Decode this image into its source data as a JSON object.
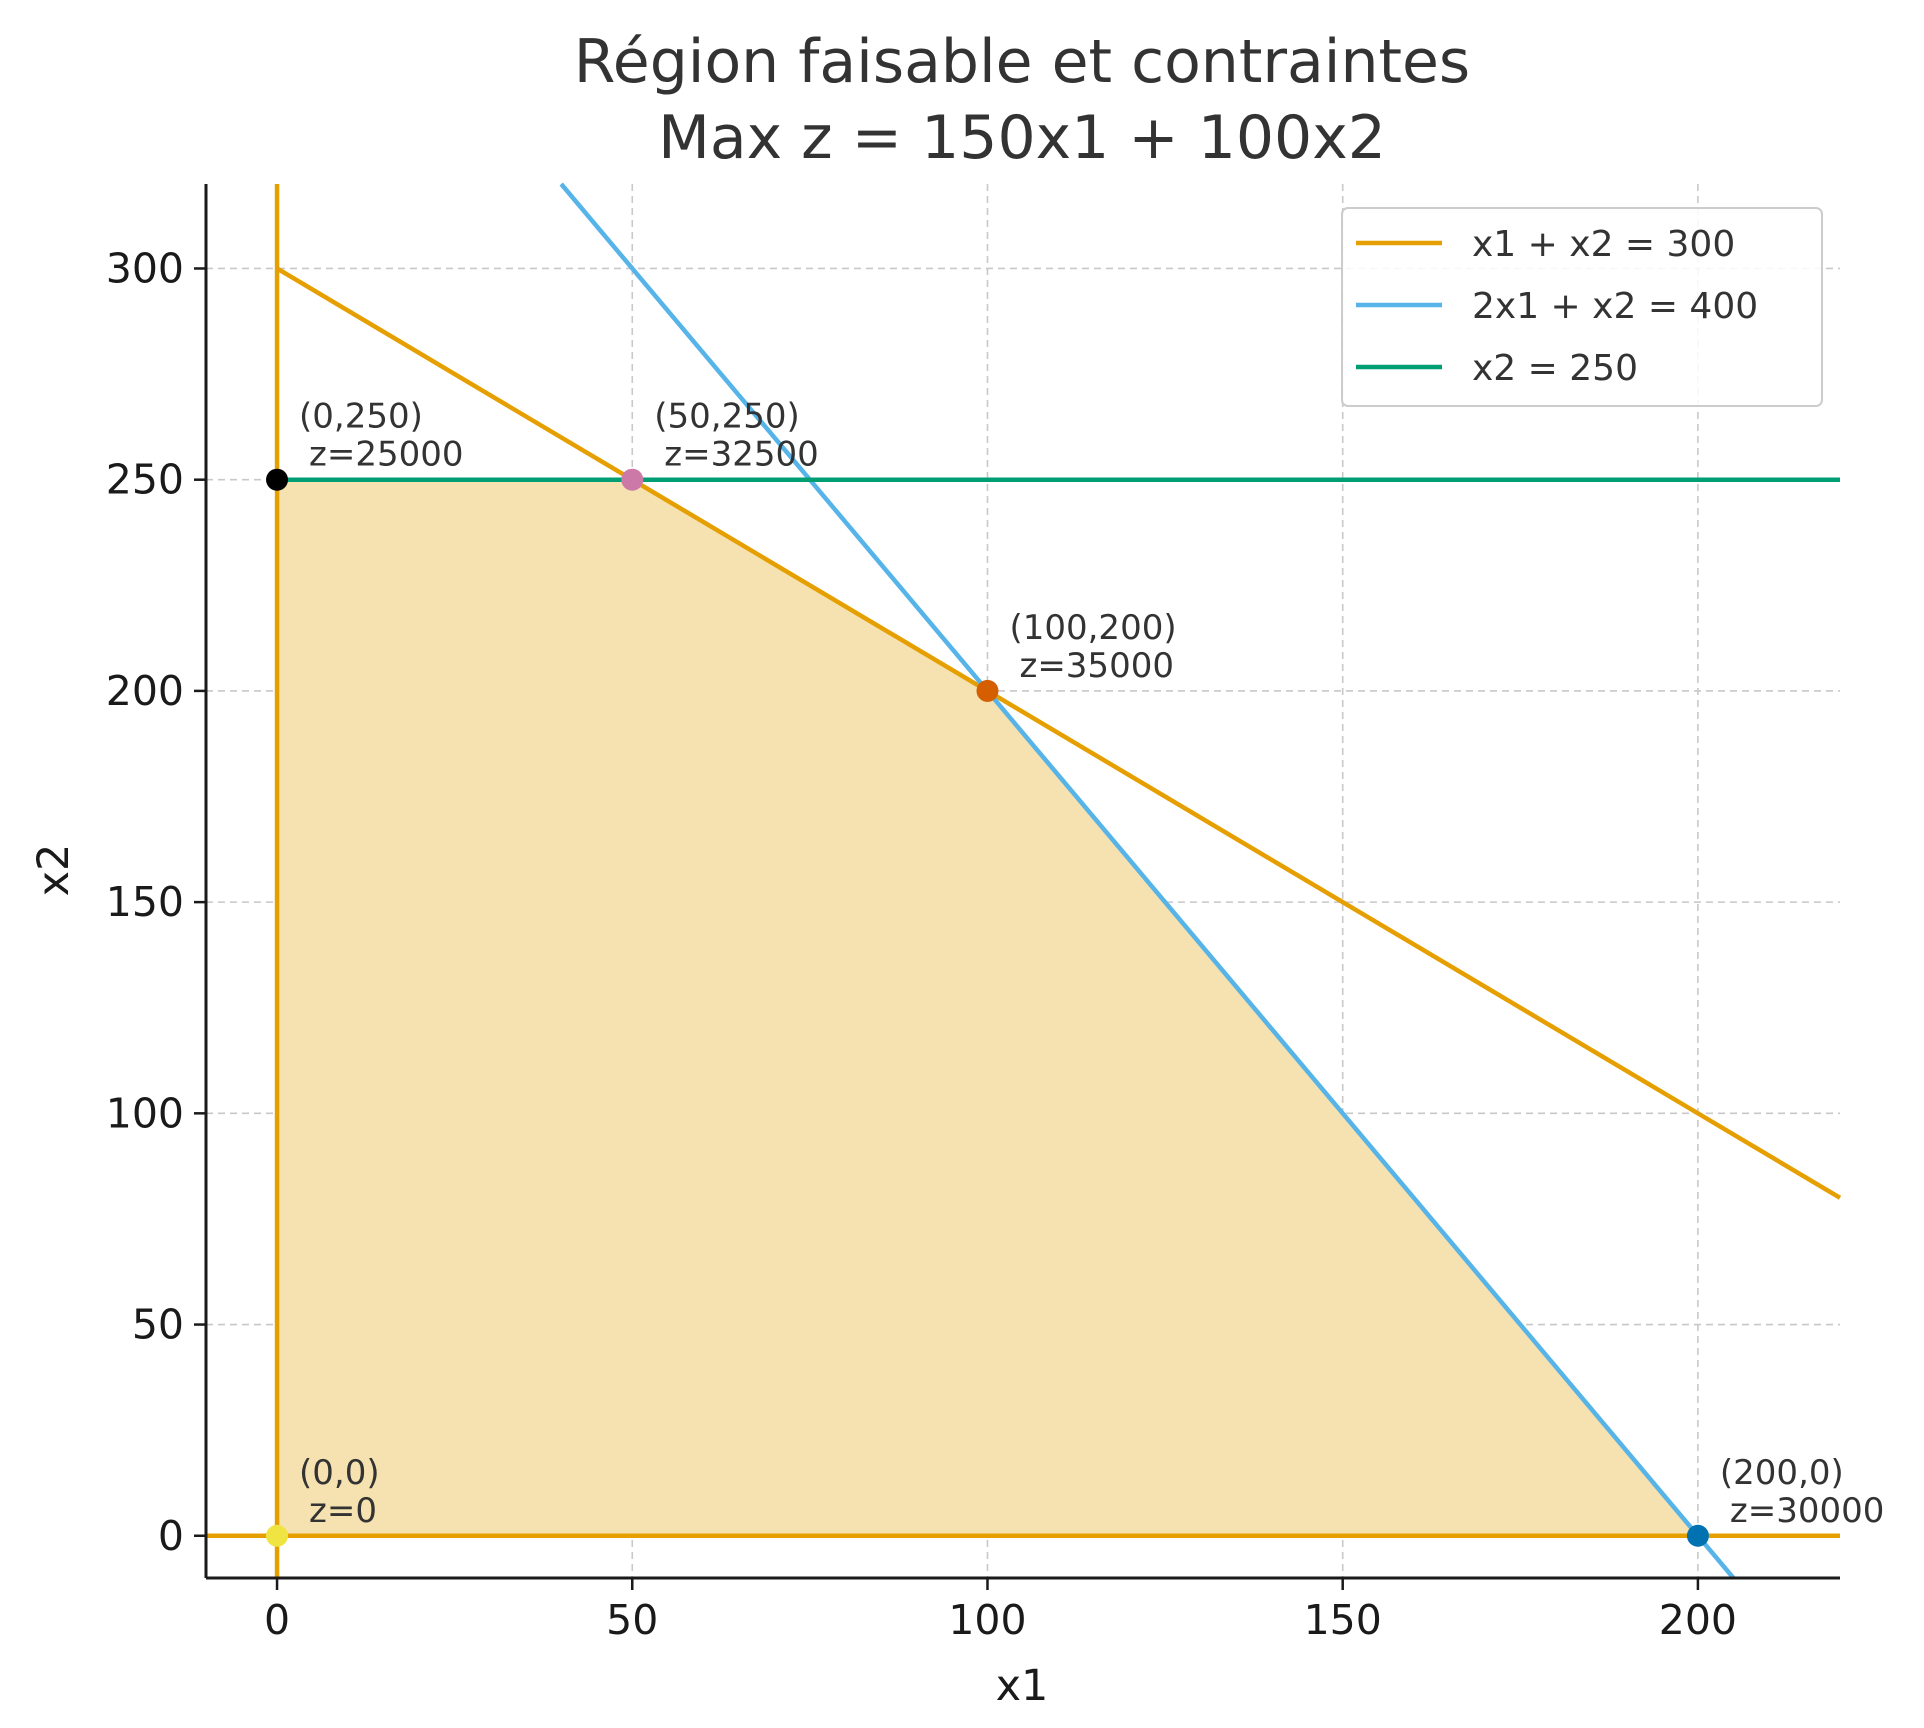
{
  "chart_data": {
    "type": "line",
    "title": "Région faisable et contraintes\nMax z = 150x1 + 100x2",
    "xlabel": "x1",
    "ylabel": "x2",
    "xlim": [
      -10,
      220
    ],
    "ylim": [
      -10,
      320
    ],
    "xticks": [
      0,
      50,
      100,
      150,
      200
    ],
    "yticks": [
      0,
      50,
      100,
      150,
      200,
      250,
      300
    ],
    "grid": true,
    "legend_position": "top-right",
    "feasible_region": {
      "vertices": [
        [
          0,
          0
        ],
        [
          0,
          250
        ],
        [
          50,
          250
        ],
        [
          100,
          200
        ],
        [
          200,
          0
        ]
      ],
      "color": "#F6E2B1"
    },
    "series": [
      {
        "name": "x1 + x2 = 300",
        "color": "#E69F00",
        "points": [
          [
            0,
            300
          ],
          [
            220,
            80
          ]
        ]
      },
      {
        "name": "2x1 + x2 = 400",
        "color": "#56B4E9",
        "points": [
          [
            40,
            320
          ],
          [
            205,
            -10
          ]
        ]
      },
      {
        "name": "x2 = 250",
        "color": "#009E73",
        "points": [
          [
            0,
            250
          ],
          [
            220,
            250
          ]
        ]
      }
    ],
    "axis_lines": [
      {
        "color": "#E69F00",
        "points": [
          [
            0,
            -10
          ],
          [
            0,
            320
          ]
        ]
      },
      {
        "color": "#E69F00",
        "points": [
          [
            -10,
            0
          ],
          [
            220,
            0
          ]
        ]
      }
    ],
    "vertices": [
      {
        "x": 0,
        "y": 0,
        "label": "(0,0)",
        "z_label": "z=0",
        "color": "#F0E442"
      },
      {
        "x": 0,
        "y": 250,
        "label": "(0,250)",
        "z_label": "z=25000",
        "color": "#000000"
      },
      {
        "x": 50,
        "y": 250,
        "label": "(50,250)",
        "z_label": "z=32500",
        "color": "#CC79A7"
      },
      {
        "x": 100,
        "y": 200,
        "label": "(100,200)",
        "z_label": "z=35000",
        "color": "#D55E00"
      },
      {
        "x": 200,
        "y": 0,
        "label": "(200,0)",
        "z_label": "z=30000",
        "color": "#0072B2"
      }
    ]
  }
}
